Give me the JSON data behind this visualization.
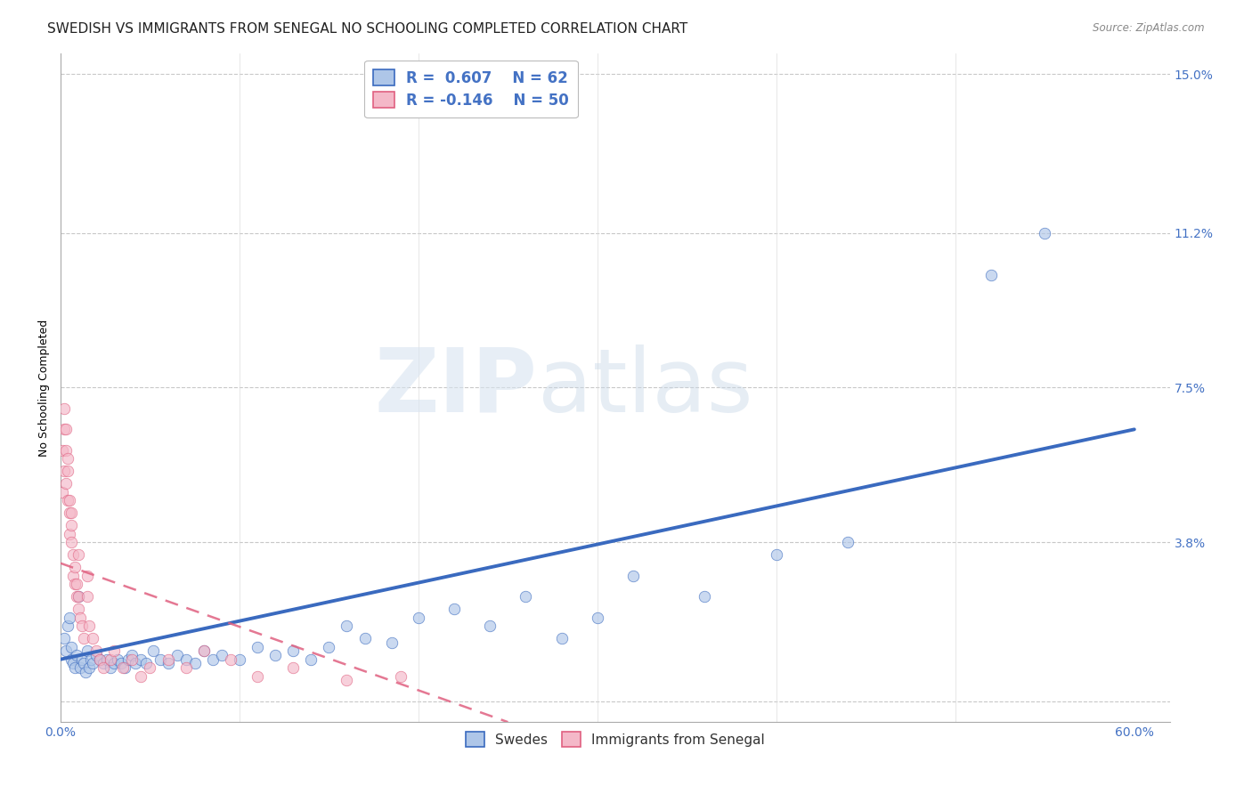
{
  "title": "SWEDISH VS IMMIGRANTS FROM SENEGAL NO SCHOOLING COMPLETED CORRELATION CHART",
  "source": "Source: ZipAtlas.com",
  "ylabel": "No Schooling Completed",
  "xlim": [
    0.0,
    0.62
  ],
  "ylim": [
    -0.005,
    0.155
  ],
  "ytick_labels_right": [
    "15.0%",
    "11.2%",
    "7.5%",
    "3.8%",
    ""
  ],
  "ytick_values_right": [
    0.15,
    0.112,
    0.075,
    0.038,
    0.0
  ],
  "swede_color": "#aec6e8",
  "senegal_color": "#f4b8c8",
  "swede_line_color": "#3a6abf",
  "senegal_line_color": "#e06080",
  "background_color": "#ffffff",
  "grid_color": "#c8c8c8",
  "title_fontsize": 11,
  "axis_label_fontsize": 9,
  "tick_fontsize": 10,
  "marker_size": 9,
  "marker_alpha": 0.65,
  "swedes_x": [
    0.002,
    0.003,
    0.004,
    0.005,
    0.006,
    0.006,
    0.007,
    0.008,
    0.009,
    0.01,
    0.011,
    0.012,
    0.013,
    0.014,
    0.015,
    0.016,
    0.017,
    0.018,
    0.02,
    0.022,
    0.024,
    0.026,
    0.028,
    0.03,
    0.032,
    0.034,
    0.036,
    0.038,
    0.04,
    0.042,
    0.045,
    0.048,
    0.052,
    0.056,
    0.06,
    0.065,
    0.07,
    0.075,
    0.08,
    0.085,
    0.09,
    0.1,
    0.11,
    0.12,
    0.13,
    0.14,
    0.15,
    0.16,
    0.17,
    0.185,
    0.2,
    0.22,
    0.24,
    0.26,
    0.28,
    0.3,
    0.32,
    0.36,
    0.4,
    0.44,
    0.52,
    0.55
  ],
  "swedes_y": [
    0.015,
    0.012,
    0.018,
    0.02,
    0.013,
    0.01,
    0.009,
    0.008,
    0.011,
    0.025,
    0.008,
    0.01,
    0.009,
    0.007,
    0.012,
    0.008,
    0.01,
    0.009,
    0.011,
    0.01,
    0.009,
    0.01,
    0.008,
    0.009,
    0.01,
    0.009,
    0.008,
    0.01,
    0.011,
    0.009,
    0.01,
    0.009,
    0.012,
    0.01,
    0.009,
    0.011,
    0.01,
    0.009,
    0.012,
    0.01,
    0.011,
    0.01,
    0.013,
    0.011,
    0.012,
    0.01,
    0.013,
    0.018,
    0.015,
    0.014,
    0.02,
    0.022,
    0.018,
    0.025,
    0.015,
    0.02,
    0.03,
    0.025,
    0.035,
    0.038,
    0.102,
    0.112
  ],
  "senegal_x": [
    0.001,
    0.001,
    0.002,
    0.002,
    0.002,
    0.003,
    0.003,
    0.003,
    0.004,
    0.004,
    0.004,
    0.005,
    0.005,
    0.005,
    0.006,
    0.006,
    0.006,
    0.007,
    0.007,
    0.008,
    0.008,
    0.009,
    0.009,
    0.01,
    0.01,
    0.011,
    0.012,
    0.013,
    0.015,
    0.016,
    0.018,
    0.02,
    0.022,
    0.024,
    0.028,
    0.03,
    0.035,
    0.04,
    0.045,
    0.05,
    0.06,
    0.07,
    0.08,
    0.095,
    0.11,
    0.13,
    0.16,
    0.19,
    0.01,
    0.015
  ],
  "senegal_y": [
    0.05,
    0.06,
    0.055,
    0.065,
    0.07,
    0.052,
    0.06,
    0.065,
    0.048,
    0.055,
    0.058,
    0.04,
    0.045,
    0.048,
    0.038,
    0.042,
    0.045,
    0.03,
    0.035,
    0.028,
    0.032,
    0.025,
    0.028,
    0.022,
    0.025,
    0.02,
    0.018,
    0.015,
    0.025,
    0.018,
    0.015,
    0.012,
    0.01,
    0.008,
    0.01,
    0.012,
    0.008,
    0.01,
    0.006,
    0.008,
    0.01,
    0.008,
    0.012,
    0.01,
    0.006,
    0.008,
    0.005,
    0.006,
    0.035,
    0.03
  ],
  "swede_trendline_x": [
    0.0,
    0.6
  ],
  "swede_trendline_y": [
    0.01,
    0.065
  ],
  "senegal_trendline_x": [
    0.0,
    0.25
  ],
  "senegal_trendline_y": [
    0.033,
    -0.005
  ]
}
